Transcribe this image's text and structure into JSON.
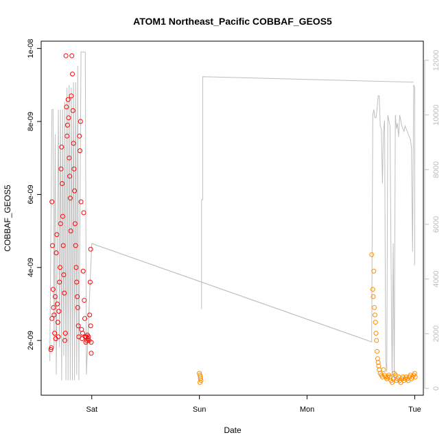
{
  "chart_data": {
    "type": "scatter",
    "title": "ATOM1 Northeast_Pacific COBBAF_GEOS5",
    "xlabel": "Date",
    "ylabel": "COBBAF_GEOS5",
    "x_ticks": [
      "Sat",
      "Sun",
      "Mon",
      "Tue"
    ],
    "x_range": [
      -0.47,
      3.08
    ],
    "y_ticks": [
      "2e-09",
      "4e-09",
      "6e-09",
      "8e-09",
      "1e-08"
    ],
    "y_tick_values": [
      2e-09,
      4e-09,
      6e-09,
      8e-09,
      1e-08
    ],
    "ylim": [
      5e-10,
      1.02e-08
    ],
    "y2_ticks": [
      "0",
      "2000",
      "4000",
      "6000",
      "8000",
      "10000",
      "12000"
    ],
    "y2_tick_values": [
      0,
      2000,
      4000,
      6000,
      8000,
      10000,
      12000
    ],
    "y2lim": [
      -250,
      12700
    ],
    "colors": {
      "series_red": "#ff0000",
      "series_orange": "#ff8c00",
      "altitude_line": "#bebebe",
      "axes": "#000000",
      "right_axis": "#bdbdbd"
    },
    "series": [
      {
        "color": "#ff0000",
        "points": [
          [
            -0.38,
            1.75e-09
          ],
          [
            -0.375,
            1.8e-09
          ],
          [
            -0.37,
            2.6e-09
          ],
          [
            -0.365,
            4.6e-09
          ],
          [
            -0.37,
            5.8e-09
          ],
          [
            -0.36,
            3.4e-09
          ],
          [
            -0.355,
            2.9e-09
          ],
          [
            -0.35,
            2.7e-09
          ],
          [
            -0.345,
            2.2e-09
          ],
          [
            -0.34,
            3.2e-09
          ],
          [
            -0.335,
            2.05e-09
          ],
          [
            -0.33,
            4.4e-09
          ],
          [
            -0.325,
            4.9e-09
          ],
          [
            -0.32,
            3e-09
          ],
          [
            -0.315,
            2.5e-09
          ],
          [
            -0.31,
            2.1e-09
          ],
          [
            -0.305,
            2.8e-09
          ],
          [
            -0.3,
            3.6e-09
          ],
          [
            -0.295,
            4e-09
          ],
          [
            -0.29,
            5.2e-09
          ],
          [
            -0.285,
            6.7e-09
          ],
          [
            -0.28,
            7.3e-09
          ],
          [
            -0.275,
            6.3e-09
          ],
          [
            -0.27,
            5.4e-09
          ],
          [
            -0.265,
            4.6e-09
          ],
          [
            -0.26,
            3.8e-09
          ],
          [
            -0.255,
            3.3e-09
          ],
          [
            -0.25,
            2e-09
          ],
          [
            -0.245,
            2.2e-09
          ],
          [
            -0.24,
            9.8e-09
          ],
          [
            -0.235,
            8.4e-09
          ],
          [
            -0.23,
            7.6e-09
          ],
          [
            -0.225,
            7.9e-09
          ],
          [
            -0.22,
            8.6e-09
          ],
          [
            -0.215,
            8.1e-09
          ],
          [
            -0.21,
            7e-09
          ],
          [
            -0.205,
            6.5e-09
          ],
          [
            -0.2,
            5.9e-09
          ],
          [
            -0.195,
            5e-09
          ],
          [
            -0.19,
            8.7e-09
          ],
          [
            -0.185,
            9.8e-09
          ],
          [
            -0.18,
            9.3e-09
          ],
          [
            -0.175,
            8.3e-09
          ],
          [
            -0.17,
            7.4e-09
          ],
          [
            -0.165,
            6.7e-09
          ],
          [
            -0.16,
            6.1e-09
          ],
          [
            -0.155,
            5.2e-09
          ],
          [
            -0.15,
            4.6e-09
          ],
          [
            -0.145,
            4e-09
          ],
          [
            -0.14,
            3.6e-09
          ],
          [
            -0.135,
            3.2e-09
          ],
          [
            -0.13,
            2.9e-09
          ],
          [
            -0.125,
            2.4e-09
          ],
          [
            -0.12,
            2.1e-09
          ],
          [
            -0.115,
            7.6e-09
          ],
          [
            -0.11,
            7.2e-09
          ],
          [
            -0.105,
            8e-09
          ],
          [
            -0.1,
            5.8e-09
          ],
          [
            -0.095,
            2.3e-09
          ],
          [
            -0.09,
            2.05e-09
          ],
          [
            -0.085,
            2.2e-09
          ],
          [
            -0.08,
            3.9e-09
          ],
          [
            -0.075,
            5.5e-09
          ],
          [
            -0.07,
            3.1e-09
          ],
          [
            -0.065,
            2.6e-09
          ],
          [
            -0.06,
            2.1e-09
          ],
          [
            -0.055,
            1.95e-09
          ],
          [
            -0.05,
            2.1e-09
          ],
          [
            -0.045,
            2e-09
          ],
          [
            -0.04,
            2.15e-09
          ],
          [
            -0.035,
            2.05e-09
          ],
          [
            -0.03,
            2.1e-09
          ],
          [
            -0.025,
            2e-09
          ],
          [
            -0.02,
            2.7e-09
          ],
          [
            -0.015,
            3.6e-09
          ],
          [
            -0.01,
            2.4e-09
          ],
          [
            -0.01,
            4.5e-09
          ],
          [
            -0.005,
            1.95e-09
          ],
          [
            -0.005,
            1.65e-09
          ]
        ]
      },
      {
        "color": "#ff8c00",
        "points": [
          [
            1.0,
            1.1e-09
          ],
          [
            1.005,
            1.05e-09
          ],
          [
            1.01,
            9.5e-10
          ],
          [
            1.015,
            9e-10
          ],
          [
            1.01,
            1e-09
          ],
          [
            1.005,
            8.5e-10
          ],
          [
            2.6,
            4.35e-09
          ],
          [
            2.61,
            3.4e-09
          ],
          [
            2.615,
            3.2e-09
          ],
          [
            2.62,
            3.9e-09
          ],
          [
            2.625,
            2.9e-09
          ],
          [
            2.63,
            2.7e-09
          ],
          [
            2.635,
            2.5e-09
          ],
          [
            2.64,
            2.2e-09
          ],
          [
            2.645,
            2e-09
          ],
          [
            2.65,
            1.7e-09
          ],
          [
            2.655,
            1.5e-09
          ],
          [
            2.66,
            1.4e-09
          ],
          [
            2.665,
            1.3e-09
          ],
          [
            2.67,
            1.2e-09
          ],
          [
            2.68,
            1.1e-09
          ],
          [
            2.69,
            1.05e-09
          ],
          [
            2.7,
            1e-09
          ],
          [
            2.71,
            1.2e-09
          ],
          [
            2.72,
            1.05e-09
          ],
          [
            2.73,
            1e-09
          ],
          [
            2.74,
            9.5e-10
          ],
          [
            2.75,
            1e-09
          ],
          [
            2.76,
            1.05e-09
          ],
          [
            2.77,
            1e-09
          ],
          [
            2.78,
            9e-10
          ],
          [
            2.79,
            8.5e-10
          ],
          [
            2.8,
            9.5e-10
          ],
          [
            2.81,
            1.1e-09
          ],
          [
            2.82,
            1.05e-09
          ],
          [
            2.83,
            9e-10
          ],
          [
            2.84,
            9.5e-10
          ],
          [
            2.85,
            1e-09
          ],
          [
            2.86,
            9e-10
          ],
          [
            2.87,
            8.5e-10
          ],
          [
            2.88,
            9.5e-10
          ],
          [
            2.89,
            1e-09
          ],
          [
            2.9,
            9e-10
          ],
          [
            2.91,
            9.5e-10
          ],
          [
            2.92,
            1e-09
          ],
          [
            2.93,
            9.5e-10
          ],
          [
            2.94,
            9e-10
          ],
          [
            2.95,
            1e-09
          ],
          [
            2.96,
            1.05e-09
          ],
          [
            2.97,
            9.5e-10
          ],
          [
            2.98,
            1e-09
          ],
          [
            2.99,
            1.05e-09
          ],
          [
            3.0,
            1.1e-09
          ],
          [
            3.005,
            1e-09
          ]
        ]
      }
    ],
    "altitude_line": {
      "color": "#bebebe",
      "axis": "right",
      "points": [
        [
          -0.39,
          1000
        ],
        [
          -0.37,
          10200
        ],
        [
          -0.36,
          10200
        ],
        [
          -0.35,
          1500
        ],
        [
          -0.34,
          9300
        ],
        [
          -0.33,
          500
        ],
        [
          -0.31,
          10200
        ],
        [
          -0.3,
          1500
        ],
        [
          -0.29,
          10200
        ],
        [
          -0.28,
          300
        ],
        [
          -0.27,
          10200
        ],
        [
          -0.26,
          1200
        ],
        [
          -0.25,
          10500
        ],
        [
          -0.24,
          300
        ],
        [
          -0.23,
          11000
        ],
        [
          -0.22,
          300
        ],
        [
          -0.21,
          11100
        ],
        [
          -0.2,
          300
        ],
        [
          -0.19,
          11000
        ],
        [
          -0.18,
          300
        ],
        [
          -0.17,
          11200
        ],
        [
          -0.16,
          300
        ],
        [
          -0.15,
          11200
        ],
        [
          -0.14,
          500
        ],
        [
          -0.13,
          11800
        ],
        [
          -0.12,
          300
        ],
        [
          -0.1,
          12300
        ],
        [
          -0.06,
          12300
        ],
        [
          -0.05,
          500
        ],
        [
          0.0,
          5300
        ],
        [
          2.6,
          1700
        ],
        [
          2.61,
          10000
        ],
        [
          2.62,
          10200
        ],
        [
          2.63,
          9900
        ],
        [
          2.64,
          9900
        ],
        [
          2.65,
          10200
        ],
        [
          2.66,
          10700
        ],
        [
          2.67,
          10700
        ],
        [
          2.68,
          9600
        ],
        [
          2.69,
          9500
        ],
        [
          2.7,
          7500
        ],
        [
          2.71,
          9400
        ],
        [
          2.72,
          9800
        ],
        [
          2.73,
          1000
        ],
        [
          2.74,
          600
        ],
        [
          2.75,
          10000
        ],
        [
          2.76,
          9800
        ],
        [
          2.77,
          9600
        ],
        [
          2.78,
          4700
        ],
        [
          2.79,
          300
        ],
        [
          2.8,
          5300
        ],
        [
          2.81,
          300
        ],
        [
          2.82,
          10000
        ],
        [
          2.83,
          9500
        ],
        [
          2.84,
          9700
        ],
        [
          2.85,
          9200
        ],
        [
          2.86,
          10000
        ],
        [
          2.87,
          9800
        ],
        [
          2.88,
          9600
        ],
        [
          2.89,
          9500
        ],
        [
          2.9,
          9400
        ],
        [
          2.91,
          9600
        ],
        [
          2.92,
          9500
        ],
        [
          2.93,
          9400
        ],
        [
          2.94,
          9300
        ],
        [
          2.95,
          9200
        ],
        [
          2.96,
          9100
        ],
        [
          2.97,
          8800
        ],
        [
          2.98,
          5000
        ],
        [
          2.99,
          11100
        ],
        [
          3.0,
          11000
        ],
        [
          3.0,
          4600
        ],
        [
          2.995,
          4500
        ]
      ],
      "segments": [
        [
          [
            0.0,
            5300
          ],
          [
            2.6,
            1700
          ]
        ],
        [
          [
            1.02,
            2900
          ],
          [
            1.02,
            6900
          ],
          [
            1.03,
            6900
          ],
          [
            1.03,
            11400
          ],
          [
            2.99,
            11200
          ]
        ]
      ]
    }
  }
}
